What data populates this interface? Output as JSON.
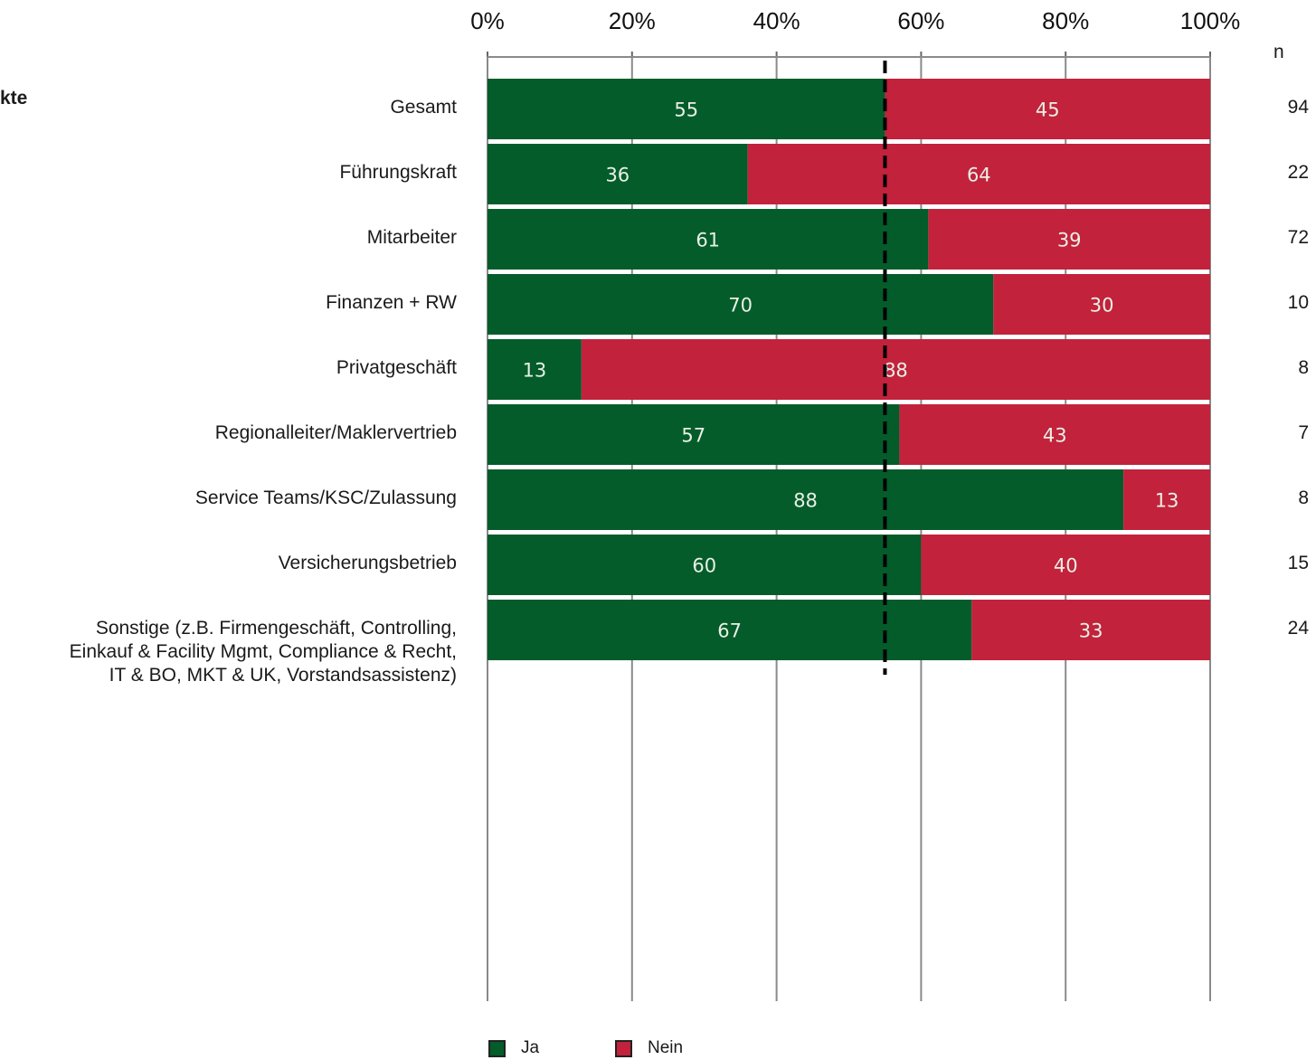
{
  "section_label": "kte",
  "n_header": "n",
  "colors": {
    "ja": "#045c2a",
    "nein": "#c2223b",
    "text_on_bar": "#e9f0e6"
  },
  "legend": [
    {
      "name": "Ja",
      "color": "#045c2a"
    },
    {
      "name": "Nein",
      "color": "#c2223b"
    }
  ],
  "chart_data": {
    "type": "bar",
    "orientation": "horizontal",
    "stacked": true,
    "x_ticks": [
      "0%",
      "20%",
      "40%",
      "60%",
      "80%",
      "100%"
    ],
    "xlim": [
      0,
      100
    ],
    "grid": true,
    "legend_position": "bottom",
    "reference_line": 55,
    "categories": [
      "Gesamt",
      "Führungskraft",
      "Mitarbeiter",
      "Finanzen + RW",
      "Privatgeschäft",
      "Regionalleiter/Maklervertrieb",
      "Service Teams/KSC/Zulassung",
      "Versicherungsbetrieb",
      "Sonstige (z.B. Firmengeschäft, Controlling,\nEinkauf & Facility Mgmt, Compliance & Recht,\nIT & BO, MKT & UK, Vorstandsassistenz)"
    ],
    "series": [
      {
        "name": "Ja",
        "values": [
          55,
          36,
          61,
          70,
          13,
          57,
          88,
          60,
          67
        ]
      },
      {
        "name": "Nein",
        "values": [
          45,
          64,
          39,
          30,
          88,
          43,
          13,
          40,
          33
        ]
      }
    ],
    "n": [
      "94",
      "22",
      "72",
      "10",
      "8",
      "7",
      "8",
      "15",
      "24"
    ]
  }
}
